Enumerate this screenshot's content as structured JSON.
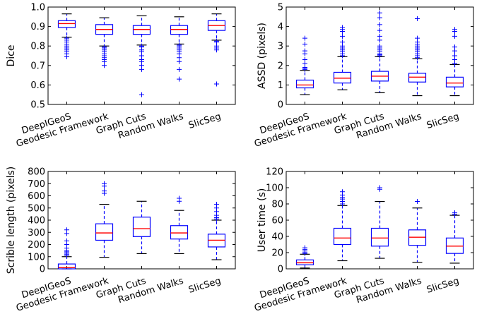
{
  "chart_data": [
    {
      "type": "box",
      "ylabel": "Dice",
      "ylim": [
        0.5,
        1.0
      ],
      "yticks": [
        "0.5",
        "0.6",
        "0.7",
        "0.8",
        "0.9",
        "1.0"
      ],
      "categories": [
        "DeepIGeoS",
        "Geodesic Framework",
        "Graph Cuts",
        "Random Walks",
        "SlicSeg"
      ],
      "boxes": [
        {
          "whisker_low": 0.845,
          "q1": 0.895,
          "median": 0.915,
          "q3": 0.93,
          "whisker_high": 0.965,
          "outliers": [
            0.84,
            0.83,
            0.82,
            0.81,
            0.8,
            0.79,
            0.78,
            0.77,
            0.76,
            0.745
          ]
        },
        {
          "whisker_low": 0.8,
          "q1": 0.86,
          "median": 0.885,
          "q3": 0.91,
          "whisker_high": 0.945,
          "outliers": [
            0.795,
            0.79,
            0.78,
            0.77,
            0.76,
            0.75,
            0.74,
            0.73,
            0.72,
            0.7
          ]
        },
        {
          "whisker_low": 0.805,
          "q1": 0.86,
          "median": 0.885,
          "q3": 0.905,
          "whisker_high": 0.955,
          "outliers": [
            0.8,
            0.795,
            0.78,
            0.77,
            0.75,
            0.73,
            0.72,
            0.7,
            0.68,
            0.55
          ]
        },
        {
          "whisker_low": 0.81,
          "q1": 0.86,
          "median": 0.885,
          "q3": 0.905,
          "whisker_high": 0.95,
          "outliers": [
            0.805,
            0.8,
            0.79,
            0.78,
            0.77,
            0.76,
            0.74,
            0.72,
            0.68,
            0.63
          ]
        },
        {
          "whisker_low": 0.83,
          "q1": 0.88,
          "median": 0.905,
          "q3": 0.93,
          "whisker_high": 0.965,
          "outliers": [
            0.825,
            0.82,
            0.8,
            0.79,
            0.78,
            0.605
          ]
        }
      ]
    },
    {
      "type": "box",
      "ylabel": "ASSD (pixels)",
      "ylim": [
        0,
        5
      ],
      "yticks": [
        "0",
        "1",
        "2",
        "3",
        "4",
        "5"
      ],
      "categories": [
        "DeepIGeoS",
        "Geodesic Framework",
        "Graph Cuts",
        "Random Walks",
        "SlicSeg"
      ],
      "boxes": [
        {
          "whisker_low": 0.5,
          "q1": 0.85,
          "median": 1.0,
          "q3": 1.25,
          "whisker_high": 1.75,
          "outliers": [
            1.8,
            1.85,
            1.9,
            2.1,
            2.3,
            2.6,
            2.75,
            3.1,
            3.4
          ]
        },
        {
          "whisker_low": 0.75,
          "q1": 1.1,
          "median": 1.35,
          "q3": 1.65,
          "whisker_high": 2.45,
          "outliers": [
            2.5,
            2.6,
            2.7,
            2.8,
            2.9,
            3.0,
            3.2,
            3.5,
            3.75,
            3.85,
            3.95
          ]
        },
        {
          "whisker_low": 0.6,
          "q1": 1.2,
          "median": 1.45,
          "q3": 1.7,
          "whisker_high": 2.45,
          "outliers": [
            2.5,
            2.55,
            2.6,
            2.7,
            2.8,
            2.9,
            3.0,
            3.3,
            3.5,
            3.8,
            4.1,
            4.45,
            4.7
          ]
        },
        {
          "whisker_low": 0.45,
          "q1": 1.15,
          "median": 1.4,
          "q3": 1.6,
          "whisker_high": 2.35,
          "outliers": [
            2.4,
            2.5,
            2.6,
            2.7,
            2.8,
            2.9,
            3.0,
            3.1,
            3.2,
            3.4,
            4.4
          ]
        },
        {
          "whisker_low": 0.45,
          "q1": 0.9,
          "median": 1.1,
          "q3": 1.4,
          "whisker_high": 2.05,
          "outliers": [
            2.1,
            2.3,
            2.5,
            2.75,
            2.95,
            3.5,
            3.75,
            3.85
          ]
        }
      ]
    },
    {
      "type": "box",
      "ylabel": "Scrible length (pixels)",
      "ylim": [
        0,
        800
      ],
      "yticks": [
        "0",
        "100",
        "200",
        "300",
        "400",
        "500",
        "600",
        "700",
        "800"
      ],
      "categories": [
        "DeepIGeoS",
        "Geodesic Framework",
        "Graph Cuts",
        "Random Walks",
        "SlicSeg"
      ],
      "boxes": [
        {
          "whisker_low": 0,
          "q1": 0,
          "median": 10,
          "q3": 40,
          "whisker_high": 100,
          "outliers": [
            110,
            120,
            130,
            140,
            150,
            170,
            200,
            230,
            290,
            320
          ]
        },
        {
          "whisker_low": 95,
          "q1": 235,
          "median": 295,
          "q3": 370,
          "whisker_high": 530,
          "outliers": [
            620,
            640,
            680,
            700
          ]
        },
        {
          "whisker_low": 125,
          "q1": 265,
          "median": 330,
          "q3": 425,
          "whisker_high": 555,
          "outliers": []
        },
        {
          "whisker_low": 125,
          "q1": 245,
          "median": 295,
          "q3": 355,
          "whisker_high": 480,
          "outliers": [
            555,
            580
          ]
        },
        {
          "whisker_low": 75,
          "q1": 180,
          "median": 235,
          "q3": 285,
          "whisker_high": 400,
          "outliers": [
            410,
            420,
            440,
            470,
            500,
            530
          ]
        }
      ]
    },
    {
      "type": "box",
      "ylabel": "User time (s)",
      "ylim": [
        0,
        120
      ],
      "yticks": [
        "0",
        "20",
        "40",
        "60",
        "80",
        "100",
        "120"
      ],
      "categories": [
        "DeepIGeoS",
        "Geodesic Framework",
        "Graph Cuts",
        "Random Walks",
        "SlicSeg"
      ],
      "boxes": [
        {
          "whisker_low": 1,
          "q1": 5,
          "median": 7.5,
          "q3": 11,
          "whisker_high": 18,
          "outliers": [
            19,
            20,
            22,
            24,
            26
          ]
        },
        {
          "whisker_low": 10,
          "q1": 30,
          "median": 38,
          "q3": 50,
          "whisker_high": 78,
          "outliers": [
            80,
            83,
            86,
            88,
            91,
            95
          ]
        },
        {
          "whisker_low": 13,
          "q1": 28,
          "median": 38,
          "q3": 50,
          "whisker_high": 83,
          "outliers": [
            98,
            100
          ]
        },
        {
          "whisker_low": 8,
          "q1": 29,
          "median": 39,
          "q3": 48,
          "whisker_high": 75,
          "outliers": [
            83
          ]
        },
        {
          "whisker_low": 7,
          "q1": 19,
          "median": 28,
          "q3": 38,
          "whisker_high": 66,
          "outliers": [
            67,
            69
          ]
        }
      ]
    }
  ],
  "colors": {
    "box": "#0000ff",
    "median": "#ff0000",
    "outlier": "#0000ff",
    "axis": "#000000"
  }
}
